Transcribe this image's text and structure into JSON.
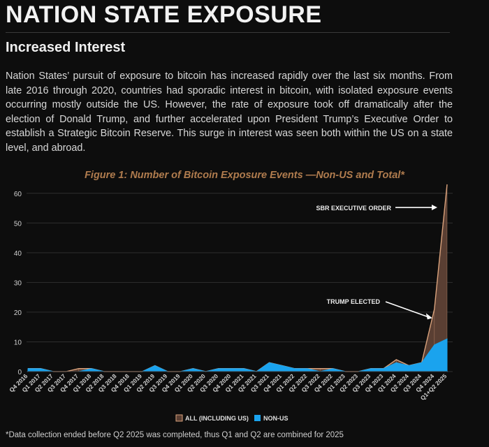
{
  "header": {
    "title": "NATION STATE EXPOSURE",
    "subtitle": "Increased Interest"
  },
  "body": {
    "paragraph": "Nation States’ pursuit of exposure to bitcoin has increased rapidly over the last six months. From late 2016 through 2020, countries had sporadic interest in bitcoin, with isolated exposure events occurring mostly outside the US. However, the rate of exposure took off dramatically after the election of Donald Trump, and further accelerated upon President Trump’s Executive Order to establish a Strategic Bitcoin Reserve. This surge in interest was seen both within the US on a state level, and abroad."
  },
  "footnote": "*Data collection ended before Q2 2025 was completed, thus Q1 and Q2 are combined for 2025",
  "colors": {
    "all": "#d9a27c",
    "all_fill": "#5a3f33",
    "non_us": "#1aa3ee",
    "title_accent": "#b07c4e"
  },
  "chart_data": {
    "type": "area",
    "title": "Figure 1: Number of Bitcoin Exposure Events —Non-US and Total*",
    "categories": [
      "Q4 2016",
      "Q1 2017",
      "Q2 2017",
      "Q3 2017",
      "Q4 2017",
      "Q1 2018",
      "Q2 2018",
      "Q3 2018",
      "Q4 2018",
      "Q1 2019",
      "Q2 2019",
      "Q3 2019",
      "Q4 2019",
      "Q1 2020",
      "Q2 2020",
      "Q3 2020",
      "Q4 2020",
      "Q1 2021",
      "Q2 2021",
      "Q3 2021",
      "Q4 2021",
      "Q1 2022",
      "Q2 2022",
      "Q3 2022",
      "Q4 2022",
      "Q1 2023",
      "Q2 2023",
      "Q3 2023",
      "Q4 2023",
      "Q1 2024",
      "Q2 2024",
      "Q3 2024",
      "Q4 2024",
      "Q1+Q2 2025"
    ],
    "series": [
      {
        "name": "ALL (INCLUDING US)",
        "values": [
          1,
          1,
          0,
          0,
          1,
          1,
          0,
          0,
          0,
          0,
          2,
          0,
          0,
          1,
          0,
          1,
          1,
          1,
          0,
          3,
          2,
          1,
          1,
          1,
          1,
          0,
          0,
          1,
          1,
          4,
          2,
          3,
          21,
          63
        ]
      },
      {
        "name": "NON-US",
        "values": [
          1,
          1,
          0,
          0,
          0,
          1,
          0,
          0,
          0,
          0,
          2,
          0,
          0,
          1,
          0,
          1,
          1,
          1,
          0,
          3,
          2,
          1,
          1,
          0,
          1,
          0,
          0,
          1,
          1,
          3,
          2,
          3,
          9,
          11
        ]
      }
    ],
    "ylim": [
      0,
      63
    ],
    "yticks": [
      0,
      10,
      20,
      30,
      40,
      50,
      60
    ],
    "grid": true,
    "legend": "bottom-center",
    "annotations": [
      {
        "text": "SBR EXECUTIVE ORDER",
        "category": "Q1+Q2 2025",
        "value": 55
      },
      {
        "text": "TRUMP ELECTED",
        "category": "Q4 2024",
        "value": 18
      }
    ]
  }
}
